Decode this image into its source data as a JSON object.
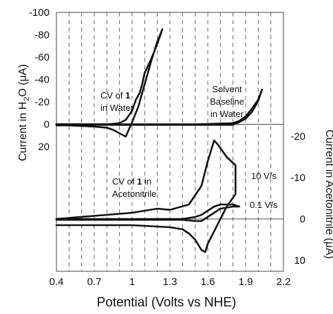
{
  "chart_data": {
    "type": "line",
    "title": "",
    "xlabel": "Potential (Volts vs NHE)",
    "x_ticks": [
      "0.4",
      "0.7",
      "1",
      "1.3",
      "1.6",
      "1.9",
      "2.2"
    ],
    "xlim": [
      0.4,
      2.2
    ],
    "grid_x_step": 0.1,
    "grid": "vertical dashed",
    "top_panel": {
      "ylabel_parts": [
        "Current in H",
        "2",
        "O (μA)"
      ],
      "y_ticks": [
        "-100",
        "-80",
        "-60",
        "-40",
        "-20",
        "0",
        "20"
      ],
      "ylim": [
        -100,
        20
      ],
      "y_axis_reversed": true,
      "annotations": [
        {
          "lines": [
            "CV of ",
            "1",
            "in Water"
          ],
          "bold": "1"
        },
        {
          "lines": [
            "Solvent",
            "Baseline",
            "in Water"
          ]
        }
      ],
      "series": [
        {
          "label": "CV of 1 in Water",
          "x": [
            0.4,
            0.8,
            0.9,
            0.95,
            1.0,
            1.03,
            1.06,
            1.08,
            1.1,
            1.15,
            1.2,
            1.24,
            1.2,
            1.15,
            1.1,
            1.05,
            1.0,
            0.95,
            0.9,
            0.85,
            0.8,
            0.7,
            0.6,
            0.5,
            0.4
          ],
          "y": [
            0,
            0,
            -1,
            -4,
            -12,
            -22,
            -28,
            -36,
            -46,
            -58,
            -72,
            -85,
            -74,
            -56,
            -36,
            -16,
            -2,
            11,
            8,
            5,
            3,
            2,
            1.5,
            1,
            1
          ]
        },
        {
          "label": "Solvent Baseline in Water",
          "x": [
            0.4,
            1.5,
            1.8,
            1.85,
            1.9,
            1.95,
            2.0,
            2.03,
            2.0,
            1.95,
            1.9,
            1.85,
            1.8,
            1.5,
            0.4
          ],
          "y": [
            0,
            0,
            -1,
            -3,
            -7,
            -14,
            -22,
            -31,
            -21,
            -11,
            -5,
            -2,
            0.5,
            0.5,
            0.5
          ]
        }
      ]
    },
    "bottom_panel": {
      "ylabel": "Current in Acetonitrile (μA)",
      "y_ticks": [
        "-20",
        "-10",
        "0",
        "10"
      ],
      "ylim": [
        -20,
        10
      ],
      "y_axis_reversed": true,
      "annotations": [
        {
          "lines": [
            "CV of ",
            "1",
            " in",
            "Acetonitrile"
          ],
          "bold": "1"
        },
        {
          "lines": [
            "10 V/s"
          ]
        },
        {
          "lines": [
            "0.1 V/s"
          ]
        }
      ],
      "series": [
        {
          "label": "10 V/s",
          "x": [
            0.4,
            0.8,
            1.0,
            1.2,
            1.3,
            1.45,
            1.55,
            1.6,
            1.65,
            1.68,
            1.75,
            1.82,
            1.82,
            1.75,
            1.7,
            1.65,
            1.6,
            1.58,
            1.55,
            1.5,
            1.45,
            1.4,
            1.3,
            1.0,
            0.8,
            0.4
          ],
          "y": [
            0,
            -1,
            -1.5,
            -2.5,
            -2.2,
            -3.5,
            -8,
            -14,
            -19,
            -18,
            -15,
            -13,
            -6,
            -3,
            0,
            3,
            6,
            8,
            7.5,
            5,
            3.5,
            2.5,
            2,
            1.5,
            1.5,
            1.5
          ],
          "label_text": "10 V/s"
        },
        {
          "label": "0.1 V/s",
          "x": [
            0.4,
            1.4,
            1.5,
            1.55,
            1.6,
            1.65,
            1.7,
            1.8,
            1.85,
            1.8,
            1.7,
            1.65,
            1.6,
            1.55,
            1.5,
            1.4,
            0.4
          ],
          "y": [
            0,
            0,
            -0.5,
            -1,
            -2,
            -3,
            -3.5,
            -3.5,
            -3,
            -3,
            -2.5,
            -1.5,
            -0.5,
            0.5,
            0.5,
            0.2,
            0.2
          ],
          "label_text": "0.1 V/s"
        }
      ]
    }
  }
}
